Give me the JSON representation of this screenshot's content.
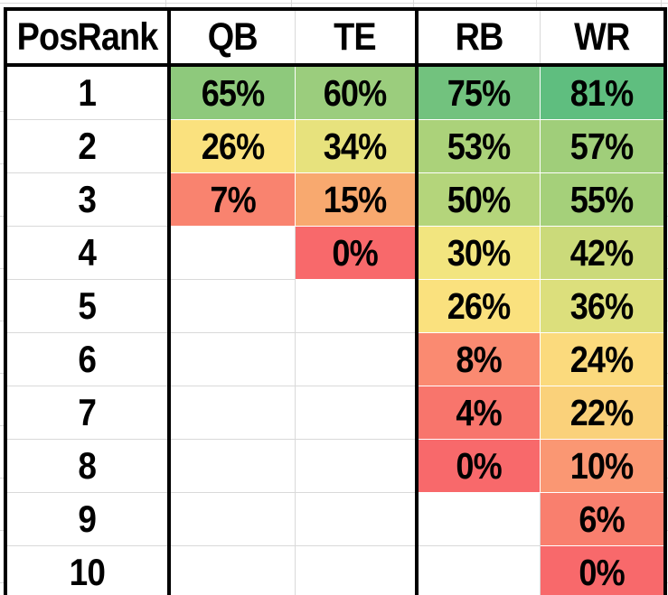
{
  "sheet": {
    "gridline_color": "#D9D9D9",
    "table_border_color": "#000000",
    "header": {
      "rank_label": "PosRank",
      "columns": [
        "QB",
        "TE",
        "RB",
        "WR"
      ]
    },
    "rows": [
      {
        "rank": "1",
        "cells": [
          {
            "text": "65%",
            "bg": "#8EC97C"
          },
          {
            "text": "60%",
            "bg": "#9BCD7D"
          },
          {
            "text": "75%",
            "bg": "#72C27E"
          },
          {
            "text": "81%",
            "bg": "#5FBE7F"
          }
        ]
      },
      {
        "rank": "2",
        "cells": [
          {
            "text": "26%",
            "bg": "#FAE17E"
          },
          {
            "text": "34%",
            "bg": "#E7E27D"
          },
          {
            "text": "53%",
            "bg": "#ABD27A"
          },
          {
            "text": "57%",
            "bg": "#A0CE7A"
          }
        ]
      },
      {
        "rank": "3",
        "cells": [
          {
            "text": "7%",
            "bg": "#F9836F"
          },
          {
            "text": "15%",
            "bg": "#F8A96F"
          },
          {
            "text": "50%",
            "bg": "#B4D57B"
          },
          {
            "text": "55%",
            "bg": "#A5D07A"
          }
        ]
      },
      {
        "rank": "4",
        "cells": [
          null,
          {
            "text": "0%",
            "bg": "#F8696B"
          },
          {
            "text": "30%",
            "bg": "#F2E57F"
          },
          {
            "text": "42%",
            "bg": "#CBDA7A"
          }
        ]
      },
      {
        "rank": "5",
        "cells": [
          null,
          null,
          {
            "text": "26%",
            "bg": "#FAE17E"
          },
          {
            "text": "36%",
            "bg": "#DCDF7C"
          }
        ]
      },
      {
        "rank": "6",
        "cells": [
          null,
          null,
          {
            "text": "8%",
            "bg": "#FA8A71"
          },
          {
            "text": "24%",
            "bg": "#FBDA7D"
          }
        ]
      },
      {
        "rank": "7",
        "cells": [
          null,
          null,
          {
            "text": "4%",
            "bg": "#F8756C"
          },
          {
            "text": "22%",
            "bg": "#FAD17A"
          }
        ]
      },
      {
        "rank": "8",
        "cells": [
          null,
          null,
          {
            "text": "0%",
            "bg": "#F8696B"
          },
          {
            "text": "10%",
            "bg": "#FA9773"
          }
        ]
      },
      {
        "rank": "9",
        "cells": [
          null,
          null,
          null,
          {
            "text": "6%",
            "bg": "#F97F6E"
          }
        ]
      },
      {
        "rank": "10",
        "cells": [
          null,
          null,
          null,
          {
            "text": "0%",
            "bg": "#F8696B"
          }
        ]
      }
    ]
  },
  "chart_data": {
    "type": "heatmap",
    "title": "",
    "row_label_header": "PosRank",
    "columns": [
      "QB",
      "TE",
      "RB",
      "WR"
    ],
    "rows": [
      1,
      2,
      3,
      4,
      5,
      6,
      7,
      8,
      9,
      10
    ],
    "values": [
      [
        65,
        60,
        75,
        81
      ],
      [
        26,
        34,
        53,
        57
      ],
      [
        7,
        15,
        50,
        55
      ],
      [
        null,
        0,
        30,
        42
      ],
      [
        null,
        null,
        26,
        36
      ],
      [
        null,
        null,
        8,
        24
      ],
      [
        null,
        null,
        4,
        22
      ],
      [
        null,
        null,
        0,
        10
      ],
      [
        null,
        null,
        null,
        6
      ],
      [
        null,
        null,
        null,
        0
      ]
    ],
    "unit": "%",
    "color_scale": {
      "min_color": "#F8696B",
      "mid_color": "#FFEB84",
      "max_color": "#63BE7B",
      "min": 0,
      "max": 81
    }
  }
}
